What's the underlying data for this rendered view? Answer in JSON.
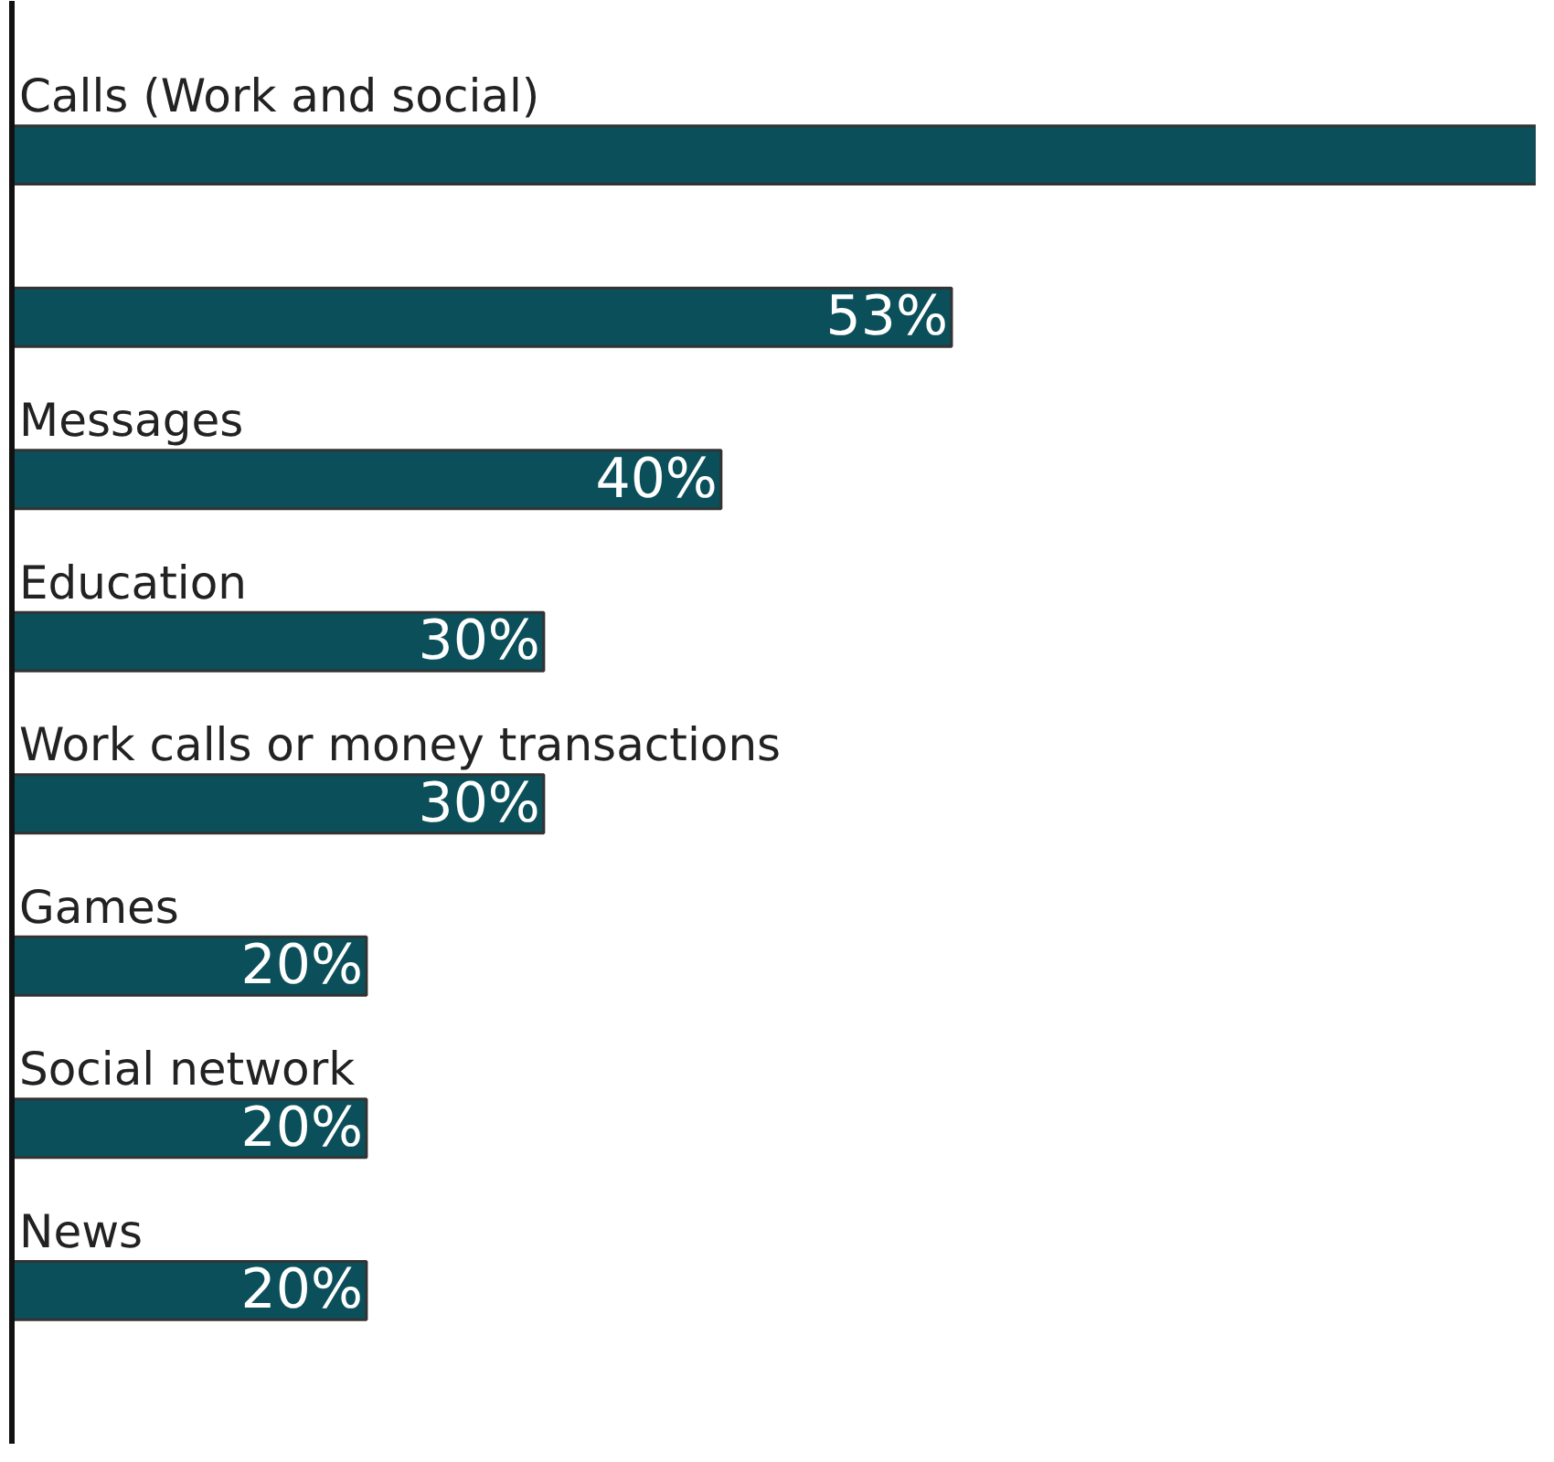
{
  "chart_data": {
    "type": "bar",
    "orientation": "horizontal",
    "categories": [
      "Calls (Work and social)",
      null,
      "Messages",
      "Education",
      "Work calls or money transactions",
      "Games",
      "Social network",
      "News"
    ],
    "values": [
      86,
      53,
      40,
      30,
      30,
      20,
      20,
      20
    ],
    "value_labels": [
      null,
      "53%",
      "40%",
      "30%",
      "30%",
      "20%",
      "20%",
      "20%"
    ],
    "color": "#0b4f5a",
    "xlim": [
      0,
      86
    ],
    "grid": false
  }
}
